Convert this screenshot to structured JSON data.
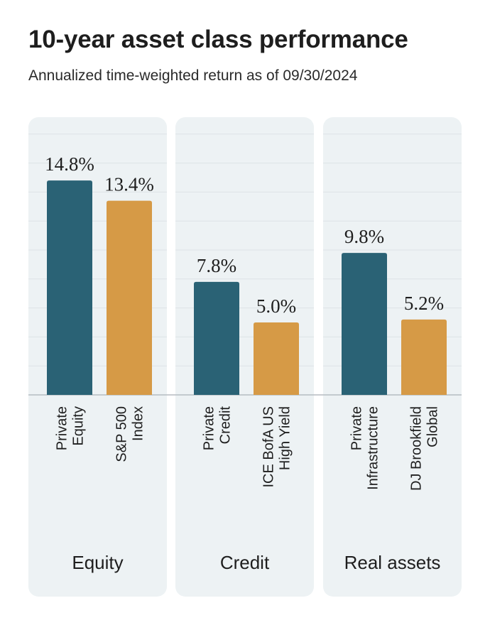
{
  "header": {
    "title": "10-year asset class performance",
    "subtitle": "Annualized time-weighted return as of 09/30/2024"
  },
  "colors": {
    "private": "#2a6275",
    "public": "#d69a46",
    "panel": "#edf2f4",
    "gridline": "#dde3e7",
    "baseline": "#b5bcc1"
  },
  "chart_data": {
    "type": "bar",
    "ylim": [
      0,
      18
    ],
    "grid": true,
    "groups": [
      {
        "name": "Equity",
        "bars": [
          {
            "category": [
              "Private",
              "Equity"
            ],
            "value": 14.8,
            "label": "14.8%",
            "kind": "private"
          },
          {
            "category": [
              "S&P 500",
              "Index"
            ],
            "value": 13.4,
            "label": "13.4%",
            "kind": "public"
          }
        ]
      },
      {
        "name": "Credit",
        "bars": [
          {
            "category": [
              "Private",
              "Credit"
            ],
            "value": 7.8,
            "label": "7.8%",
            "kind": "private"
          },
          {
            "category": [
              "ICE BofA US",
              "High Yield"
            ],
            "value": 5.0,
            "label": "5.0%",
            "kind": "public"
          }
        ]
      },
      {
        "name": "Real assets",
        "bars": [
          {
            "category": [
              "Private",
              "Infrastructure"
            ],
            "value": 9.8,
            "label": "9.8%",
            "kind": "private"
          },
          {
            "category": [
              "DJ Brookfield",
              "Global"
            ],
            "value": 5.2,
            "label": "5.2%",
            "kind": "public"
          }
        ]
      }
    ]
  }
}
